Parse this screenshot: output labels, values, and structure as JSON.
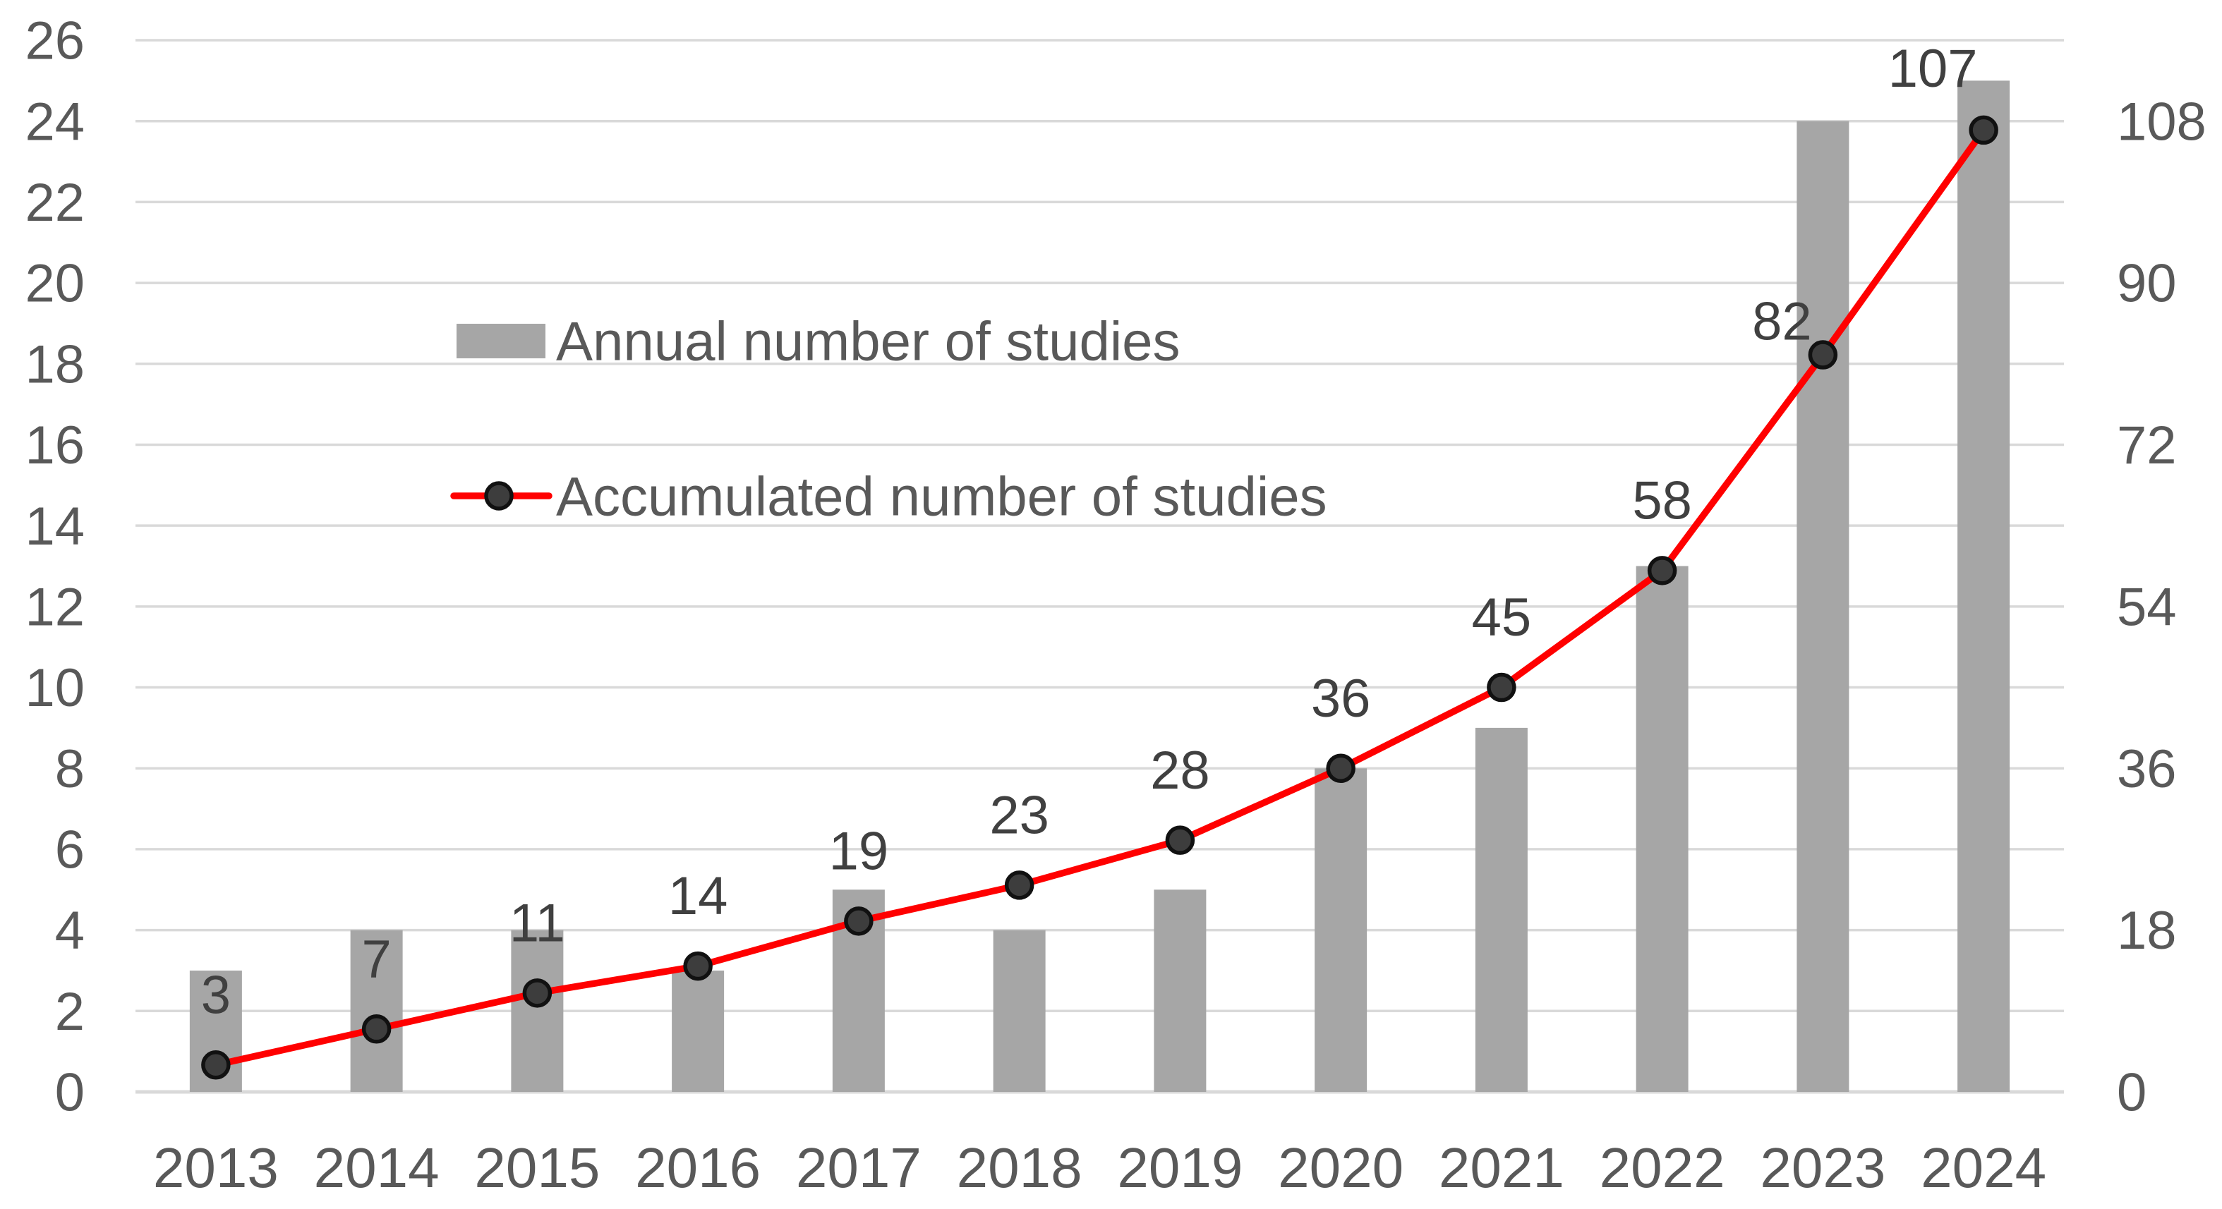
{
  "chart_data": {
    "type": "bar+line-combo",
    "categories": [
      "2013",
      "2014",
      "2015",
      "2016",
      "2017",
      "2018",
      "2019",
      "2020",
      "2021",
      "2022",
      "2023",
      "2024"
    ],
    "series": [
      {
        "name": "Annual number of studies",
        "type": "bar",
        "axis": "left",
        "color": "#A6A6A6",
        "values": [
          3,
          4,
          4,
          3,
          5,
          4,
          5,
          8,
          9,
          13,
          24,
          25
        ]
      },
      {
        "name": "Accumulated number of studies",
        "type": "line",
        "axis": "right",
        "color": "#FF0000",
        "marker_fill": "#3D3D3D",
        "marker_stroke": "#111111",
        "values": [
          3,
          7,
          11,
          14,
          19,
          23,
          28,
          36,
          45,
          58,
          82,
          107
        ],
        "data_labels": [
          "3",
          "7",
          "11",
          "14",
          "19",
          "23",
          "28",
          "36",
          "45",
          "58",
          "82",
          "107"
        ],
        "label_offsets": {
          "10": {
            "dx": -58,
            "dy": 52
          },
          "11": {
            "dx": -72,
            "dy": 12
          }
        }
      }
    ],
    "left_axis": {
      "min": 0,
      "max": 26,
      "step": 2,
      "ticks": [
        "0",
        "2",
        "4",
        "6",
        "8",
        "10",
        "12",
        "14",
        "16",
        "18",
        "20",
        "22",
        "24",
        "26"
      ]
    },
    "right_axis": {
      "min": 0,
      "max": 117,
      "step": 18,
      "ticks": [
        "0",
        "18",
        "36",
        "54",
        "72",
        "90",
        "108"
      ]
    },
    "legend": {
      "position": "inside-upper-left",
      "items": [
        {
          "label": "Annual number of studies",
          "swatch": "bar"
        },
        {
          "label": "Accumulated number of studies",
          "swatch": "line-marker"
        }
      ]
    },
    "grid": {
      "horizontal": true,
      "vertical": false
    },
    "colors": {
      "background": "#FFFFFF",
      "gridline": "#D9D9D9",
      "axis_line": "#D9D9D9",
      "tick_label": "#595959",
      "x_label": "#595959",
      "data_label": "#404040",
      "legend_label": "#595959"
    }
  }
}
